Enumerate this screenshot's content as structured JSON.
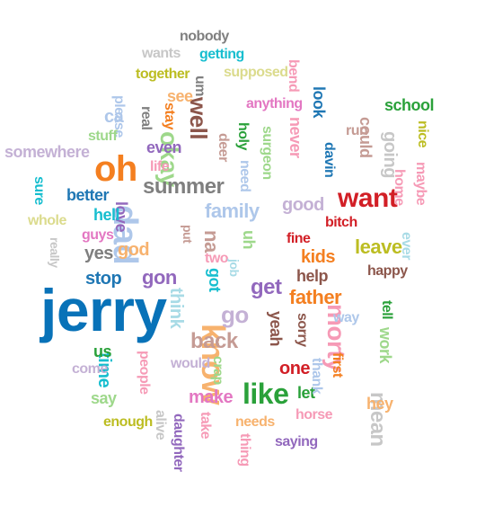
{
  "words": [
    {
      "text": "jerry",
      "color": "#0872b8",
      "rot": 0
    },
    {
      "text": "oh",
      "color": "#f47f20",
      "rot": 0
    },
    {
      "text": "know",
      "color": "#f7b26e",
      "rot": 90
    },
    {
      "text": "dad",
      "color": "#aec7ea",
      "rot": 90
    },
    {
      "text": "want",
      "color": "#d21f26",
      "rot": 0
    },
    {
      "text": "morty",
      "color": "#f69ab6",
      "rot": 90
    },
    {
      "text": "like",
      "color": "#2aa13a",
      "rot": 0
    },
    {
      "text": "get",
      "color": "#9268bd",
      "rot": 0
    },
    {
      "text": "father",
      "color": "#f47f20",
      "rot": 0
    },
    {
      "text": "okay",
      "color": "#9ed88b",
      "rot": 90
    },
    {
      "text": "summer",
      "color": "#7f7f7f",
      "rot": 0
    },
    {
      "text": "back",
      "color": "#c59b94",
      "rot": 0
    },
    {
      "text": "go",
      "color": "#c4b1d5",
      "rot": 0
    },
    {
      "text": "family",
      "color": "#aec7ea",
      "rot": 0
    },
    {
      "text": "leave",
      "color": "#bcbd22",
      "rot": 0
    },
    {
      "text": "well",
      "color": "#8c564b",
      "rot": 90
    },
    {
      "text": "stop",
      "color": "#1f77b4",
      "rot": 0
    },
    {
      "text": "gon",
      "color": "#9268bd",
      "rot": 0
    },
    {
      "text": "good",
      "color": "#c4b1d5",
      "rot": 0
    },
    {
      "text": "think",
      "color": "#a8dbe6",
      "rot": 90
    },
    {
      "text": "mean",
      "color": "#c7c7c7",
      "rot": 90
    },
    {
      "text": "one",
      "color": "#d21f26",
      "rot": 0
    },
    {
      "text": "make",
      "color": "#e377c2",
      "rot": 0
    },
    {
      "text": "time",
      "color": "#17becf",
      "rot": 90
    },
    {
      "text": "school",
      "color": "#2aa13a",
      "rot": 0
    },
    {
      "text": "anything",
      "color": "#e377c2",
      "rot": 0
    },
    {
      "text": "going",
      "color": "#c7c7c7",
      "rot": 90
    },
    {
      "text": "never",
      "color": "#f69ab6",
      "rot": 90
    },
    {
      "text": "even",
      "color": "#9268bd",
      "rot": 0
    },
    {
      "text": "yes",
      "color": "#7f7f7f",
      "rot": 0
    },
    {
      "text": "god",
      "color": "#f7b26e",
      "rot": 0
    },
    {
      "text": "kids",
      "color": "#f47f20",
      "rot": 0
    },
    {
      "text": "help",
      "color": "#8c564b",
      "rot": 0
    },
    {
      "text": "happy",
      "color": "#8c564b",
      "rot": 0
    },
    {
      "text": "bitch",
      "color": "#d21f26",
      "rot": 0
    },
    {
      "text": "fine",
      "color": "#d21f26",
      "rot": 0
    },
    {
      "text": "love",
      "color": "#9268bd",
      "rot": 90
    },
    {
      "text": "na",
      "color": "#c59b94",
      "rot": 90
    },
    {
      "text": "better",
      "color": "#1f77b4",
      "rot": 0
    },
    {
      "text": "hell",
      "color": "#17becf",
      "rot": 0
    },
    {
      "text": "guys",
      "color": "#e377c2",
      "rot": 0
    },
    {
      "text": "two",
      "color": "#f69ab6",
      "rot": 0
    },
    {
      "text": "got",
      "color": "#17becf",
      "rot": 90
    },
    {
      "text": "yeah",
      "color": "#8c564b",
      "rot": 90
    },
    {
      "text": "sorry",
      "color": "#8c564b",
      "rot": 90
    },
    {
      "text": "way",
      "color": "#aec7ea",
      "rot": 0
    },
    {
      "text": "work",
      "color": "#9ed88b",
      "rot": 90
    },
    {
      "text": "tell",
      "color": "#2aa13a",
      "rot": 90
    },
    {
      "text": "would",
      "color": "#c4b1d5",
      "rot": 0
    },
    {
      "text": "people",
      "color": "#f69ab6",
      "rot": 90
    },
    {
      "text": "let",
      "color": "#2aa13a",
      "rot": 0
    },
    {
      "text": "thank",
      "color": "#aec7ea",
      "rot": 90
    },
    {
      "text": "first",
      "color": "#f47f20",
      "rot": 90
    },
    {
      "text": "hey",
      "color": "#f7b26e",
      "rot": 0
    },
    {
      "text": "horse",
      "color": "#f69ab6",
      "rot": 0
    },
    {
      "text": "needs",
      "color": "#f7b26e",
      "rot": 0
    },
    {
      "text": "saying",
      "color": "#9268bd",
      "rot": 0
    },
    {
      "text": "thing",
      "color": "#f69ab6",
      "rot": 90
    },
    {
      "text": "take",
      "color": "#f69ab6",
      "rot": 90
    },
    {
      "text": "daughter",
      "color": "#9268bd",
      "rot": 90
    },
    {
      "text": "alive",
      "color": "#c7c7c7",
      "rot": 90
    },
    {
      "text": "enough",
      "color": "#bcbd22",
      "rot": 0
    },
    {
      "text": "say",
      "color": "#9ed88b",
      "rot": 0
    },
    {
      "text": "come",
      "color": "#c4b1d5",
      "rot": 0
    },
    {
      "text": "us",
      "color": "#2aa13a",
      "rot": 0
    },
    {
      "text": "crap",
      "color": "#9ed88b",
      "rot": 90
    },
    {
      "text": "nobody",
      "color": "#7f7f7f",
      "rot": 0
    },
    {
      "text": "wants",
      "color": "#c7c7c7",
      "rot": 0
    },
    {
      "text": "getting",
      "color": "#17becf",
      "rot": 0
    },
    {
      "text": "together",
      "color": "#bcbd22",
      "rot": 0
    },
    {
      "text": "supposed",
      "color": "#dbdb8d",
      "rot": 0
    },
    {
      "text": "bend",
      "color": "#f69ab6",
      "rot": 90
    },
    {
      "text": "um",
      "color": "#7f7f7f",
      "rot": 90
    },
    {
      "text": "see",
      "color": "#f7b26e",
      "rot": 0
    },
    {
      "text": "look",
      "color": "#1f77b4",
      "rot": 90
    },
    {
      "text": "stay",
      "color": "#f47f20",
      "rot": 90
    },
    {
      "text": "real",
      "color": "#7f7f7f",
      "rot": 90
    },
    {
      "text": "please",
      "color": "#aec7ea",
      "rot": 90
    },
    {
      "text": "ca",
      "color": "#aec7ea",
      "rot": 0
    },
    {
      "text": "stuff",
      "color": "#9ed88b",
      "rot": 0
    },
    {
      "text": "somewhere",
      "color": "#c4b1d5",
      "rot": 0
    },
    {
      "text": "life",
      "color": "#f69ab6",
      "rot": 0
    },
    {
      "text": "deer",
      "color": "#c59b94",
      "rot": 90
    },
    {
      "text": "holy",
      "color": "#2aa13a",
      "rot": 90
    },
    {
      "text": "need",
      "color": "#aec7ea",
      "rot": 90
    },
    {
      "text": "surgeon",
      "color": "#9ed88b",
      "rot": 90
    },
    {
      "text": "davin",
      "color": "#1f77b4",
      "rot": 90
    },
    {
      "text": "run",
      "color": "#c59b94",
      "rot": 0
    },
    {
      "text": "could",
      "color": "#c59b94",
      "rot": 90
    },
    {
      "text": "home",
      "color": "#f69ab6",
      "rot": 90
    },
    {
      "text": "nice",
      "color": "#bcbd22",
      "rot": 90
    },
    {
      "text": "maybe",
      "color": "#f69ab6",
      "rot": 90
    },
    {
      "text": "sure",
      "color": "#17becf",
      "rot": 90
    },
    {
      "text": "whole",
      "color": "#dbdb8d",
      "rot": 0
    },
    {
      "text": "really",
      "color": "#c7c7c7",
      "rot": 90
    },
    {
      "text": "put",
      "color": "#c59b94",
      "rot": 90
    },
    {
      "text": "job",
      "color": "#a8dbe6",
      "rot": 90
    },
    {
      "text": "uh",
      "color": "#9ed88b",
      "rot": 90
    },
    {
      "text": "ever",
      "color": "#a8dbe6",
      "rot": 90
    }
  ]
}
